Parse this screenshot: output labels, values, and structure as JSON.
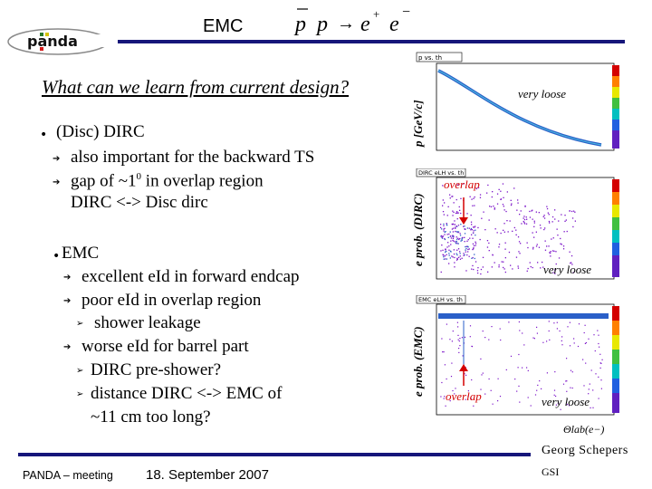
{
  "header": {
    "title": "EMC",
    "formula": {
      "p": "p",
      "arrow": "→",
      "e": "e",
      "plus": "+",
      "minus": "−"
    }
  },
  "slide": {
    "heading": "What can we learn from current design?",
    "dirc": {
      "bullet": "(Disc) DIRC",
      "items": [
        "also important for the backward TS",
        "gap of ~1",
        "0",
        " in overlap region",
        "DIRC <-> Disc dirc"
      ]
    },
    "emc": {
      "bullet": "EMC",
      "items": [
        "excellent eId in forward endcap",
        "poor eId in overlap region",
        "shower leakage",
        "worse eId for barrel part",
        "DIRC pre-shower?",
        "distance DIRC <-> EMC of",
        "~11 cm too long?"
      ]
    }
  },
  "plots": {
    "top": {
      "title": "p vs. th",
      "ylabel": "p [GeV/c]",
      "note": "very loose"
    },
    "middle": {
      "title": "DIRC eLH vs. th",
      "ylabel": "e prob. (DIRC)",
      "note": "very loose",
      "annotation": "overlap"
    },
    "bottom": {
      "title": "EMC eLH vs. th",
      "ylabel": "e prob. (EMC)",
      "note": "very loose",
      "annotation": "overlap",
      "xlabel": "Θlab(e−)"
    }
  },
  "footer": {
    "meeting": "PANDA – meeting",
    "date": "18. September 2007",
    "author": "Georg Schepers",
    "institute": "GSI"
  },
  "colors": {
    "rule": "#16167a",
    "accent_red": "#d40000",
    "plot_blue": "#2a5fc8",
    "scatter": "#7a12c8"
  }
}
